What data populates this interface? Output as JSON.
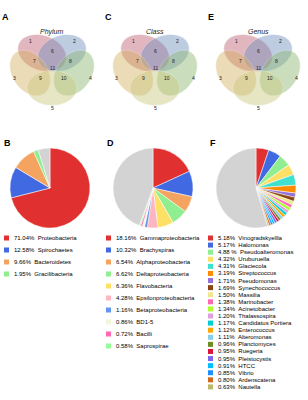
{
  "chart_data": [
    {
      "type": "venn",
      "title": "Phylum",
      "annotations": [
        "A",
        "1",
        "2",
        "3",
        "4",
        "5",
        "6",
        "7",
        "8",
        "9",
        "10",
        "11"
      ],
      "colors": [
        "#c06070",
        "#7090c0",
        "#d4b060",
        "#8cb870",
        "#c8c880"
      ]
    },
    {
      "type": "venn",
      "title": "Class",
      "annotations": [
        "C",
        "1",
        "2",
        "3",
        "4",
        "5",
        "6",
        "7",
        "8",
        "9",
        "10",
        "11"
      ],
      "colors": [
        "#c06070",
        "#7090c0",
        "#d4b060",
        "#8cb870",
        "#c8c880"
      ]
    },
    {
      "type": "venn",
      "title": "Genus",
      "annotations": [
        "E",
        "1",
        "2",
        "3",
        "4",
        "5",
        "6",
        "7",
        "8",
        "9",
        "10",
        "11"
      ],
      "colors": [
        "#c06070",
        "#7090c0",
        "#d4b060",
        "#8cb870",
        "#c8c880"
      ]
    },
    {
      "type": "pie",
      "annotations": [
        "B"
      ],
      "legend": "bottom",
      "categories": [
        "71.04%  Proteobacteria",
        "12.58%  Spirochaetes",
        "9.66%  Bacteroidetes",
        "1.95%  Gracilibacteria",
        null
      ],
      "values": [
        71.04,
        12.58,
        9.66,
        1.95,
        4.77
      ],
      "colors": [
        "#e03030",
        "#4169e1",
        "#f4a460",
        "#90ee90",
        "#d3d3d3"
      ]
    },
    {
      "type": "pie",
      "annotations": [
        "D"
      ],
      "legend": "bottom",
      "categories": [
        "18.16%  Gammaproteobacteria",
        "10.32%  Brachyspiras",
        "6.54%  Alphaproteobacteria",
        "6.62%  Deltaproteobacteria",
        "6.36%  Flavobacteria",
        "4.28%  Epsilonproteobacteria",
        "1.16%  Betaproteobacteria",
        "0.86%  BD1-5",
        "0.72%  Bacilli",
        "0.58%  Saprospirae",
        null
      ],
      "values": [
        18.16,
        10.32,
        6.54,
        6.62,
        6.36,
        4.28,
        1.16,
        0.86,
        0.72,
        0.58,
        44.4
      ],
      "colors": [
        "#e03030",
        "#4169e1",
        "#f4a460",
        "#90ee90",
        "#ffe066",
        "#ffb6c1",
        "#6495ed",
        "#f5f5dc",
        "#ff69b4",
        "#98fb98",
        "#d3d3d3"
      ]
    },
    {
      "type": "pie",
      "annotations": [
        "F"
      ],
      "legend": "bottom",
      "categories": [
        "5.18%  Vinogradskyellla",
        "5.17%  Halomonas",
        "4.88 %  Pseudoalteromonas",
        "4.32%  Uruburuella",
        "4.31%  Glaciecola",
        "3.19%  Streptococcus",
        "1.71%  Pseudomonas",
        "1.69%  Synechococcus",
        "1.50%  Massilia",
        "1.38%  Marinobacter",
        "1.34%  Acinetobacter",
        "1.20%  Thalassospira",
        "1.17%  Candidatus Portiera",
        "1.12%  Enterococcus",
        "1.11%  Alteromonas",
        "0.96%  Planctomyces",
        "0.95%  Ruegeria",
        "0.95%  Pleistocystis",
        "0.91%  HTCC",
        "0.85%  Vibrio",
        "0.80%  Ardenscatena",
        "0.63%  Nautella",
        null
      ],
      "values": [
        5.18,
        5.17,
        4.88,
        4.32,
        4.31,
        3.19,
        1.71,
        1.69,
        1.5,
        1.38,
        1.34,
        1.2,
        1.17,
        1.12,
        1.11,
        0.96,
        0.95,
        0.95,
        0.91,
        0.85,
        0.8,
        0.63,
        54.68
      ],
      "colors": [
        "#e03030",
        "#4169e1",
        "#90ee90",
        "#ffe066",
        "#40e0d0",
        "#ff8c00",
        "#9370db",
        "#8b4513",
        "#f0e68c",
        "#ff69b4",
        "#adff2f",
        "#dda0dd",
        "#00ced1",
        "#ffa500",
        "#87ceeb",
        "#6b8e23",
        "#dc143c",
        "#7b68ee",
        "#00bfff",
        "#1e90ff",
        "#d2691e",
        "#bdb76b",
        "#d3d3d3"
      ]
    }
  ]
}
